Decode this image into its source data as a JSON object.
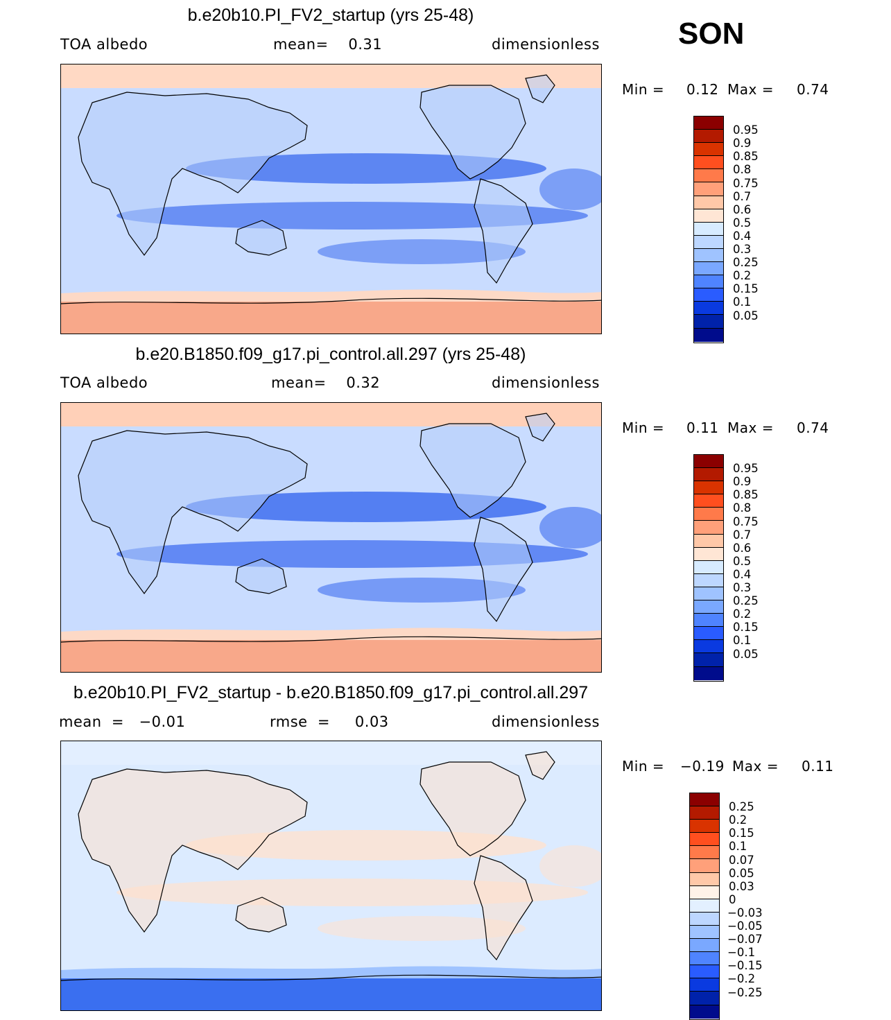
{
  "season": "SON",
  "panels": [
    {
      "title": "b.e20b10.PI_FV2_startup (yrs 25-48)",
      "left_label": "TOA  albedo",
      "center_label": "mean=    0.31",
      "right_label": "dimensionless",
      "min_label": "Min  =",
      "min_value": "0.12",
      "max_label": "Max  =",
      "max_value": "0.74",
      "colorbar": {
        "labels": [
          "0.95",
          "0.9",
          "0.85",
          "0.8",
          "0.75",
          "0.7",
          "0.6",
          "0.5",
          "0.4",
          "0.3",
          "0.25",
          "0.2",
          "0.15",
          "0.1",
          "0.05"
        ],
        "colors": [
          "#8b0000",
          "#b31a00",
          "#d93300",
          "#ff4f1f",
          "#ff7a4a",
          "#ffa07a",
          "#ffc8a8",
          "#ffe6d5",
          "#d7ebff",
          "#bdd7ff",
          "#9fc3ff",
          "#7aa8ff",
          "#4f84ff",
          "#2a5cff",
          "#0a3ae0",
          "#0022aa",
          "#000c8c"
        ]
      },
      "map": {
        "polar_color": "#f8a88a",
        "ocean_color": "#c9dcff",
        "band_color": "#4a77f0",
        "land_color": "#b5cdfa",
        "arctic_color": "#ffd9c4"
      }
    },
    {
      "title": "b.e20.B1850.f09_g17.pi_control.all.297 (yrs 25-48)",
      "left_label": "TOA  albedo",
      "center_label": "mean=    0.32",
      "right_label": "dimensionless",
      "min_label": "Min  =",
      "min_value": "0.11",
      "max_label": "Max  =",
      "max_value": "0.74",
      "colorbar": {
        "labels": [
          "0.95",
          "0.9",
          "0.85",
          "0.8",
          "0.75",
          "0.7",
          "0.6",
          "0.5",
          "0.4",
          "0.3",
          "0.25",
          "0.2",
          "0.15",
          "0.1",
          "0.05"
        ],
        "colors": [
          "#8b0000",
          "#b31a00",
          "#d93300",
          "#ff4f1f",
          "#ff7a4a",
          "#ffa07a",
          "#ffc8a8",
          "#ffe6d5",
          "#d7ebff",
          "#bdd7ff",
          "#9fc3ff",
          "#7aa8ff",
          "#4f84ff",
          "#2a5cff",
          "#0a3ae0",
          "#0022aa",
          "#000c8c"
        ]
      },
      "map": {
        "polar_color": "#f8a88a",
        "ocean_color": "#c9dcff",
        "band_color": "#3f6ef0",
        "land_color": "#b5cdfa",
        "arctic_color": "#ffd0b8"
      }
    },
    {
      "title": "b.e20b10.PI_FV2_startup - b.e20.B1850.f09_g17.pi_control.all.297",
      "left_label": "mean  =   −0.01",
      "center_label": "rmse  =     0.03",
      "right_label": "dimensionless",
      "min_label": "Min  =",
      "min_value": "−0.19",
      "max_label": "Max  =",
      "max_value": "0.11",
      "colorbar": {
        "labels": [
          "0.25",
          "0.2",
          "0.15",
          "0.1",
          "0.07",
          "0.05",
          "0.03",
          "0",
          "−0.03",
          "−0.05",
          "−0.07",
          "−0.1",
          "−0.15",
          "−0.2",
          "−0.25"
        ],
        "colors": [
          "#8b0000",
          "#b31a00",
          "#d93300",
          "#ff4f1f",
          "#ff7a4a",
          "#ffa07a",
          "#ffc8a8",
          "#fff2e8",
          "#e3f0ff",
          "#bdd7ff",
          "#9fc3ff",
          "#7aa8ff",
          "#4f84ff",
          "#2a5cff",
          "#0a3ae0",
          "#0022aa",
          "#000c8c"
        ]
      },
      "map": {
        "polar_color": "#3a6ff0",
        "ocean_color": "#dcebff",
        "band_color": "#fde3d2",
        "land_color": "#fde0cc",
        "arctic_color": "#e3efff"
      }
    }
  ]
}
